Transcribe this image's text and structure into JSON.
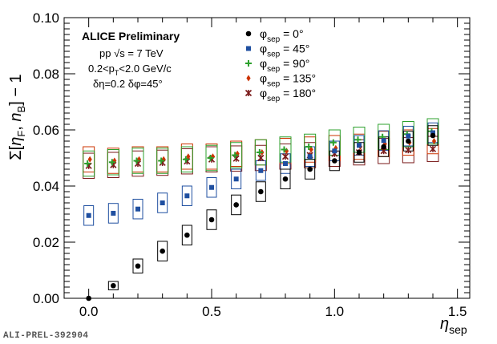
{
  "chart_data": {
    "type": "scatter",
    "title": "",
    "xlabel": "η_sep",
    "ylabel": "Σ[η_F, n_B] − 1",
    "xlim": [
      -0.1,
      1.55
    ],
    "ylim": [
      0.0,
      0.1
    ],
    "x_ticks": [
      "0.0",
      "0.5",
      "1.0",
      "1.5"
    ],
    "y_ticks": [
      "0.00",
      "0.02",
      "0.04",
      "0.06",
      "0.08",
      "0.10"
    ],
    "x": [
      0.0,
      0.1,
      0.2,
      0.3,
      0.4,
      0.5,
      0.6,
      0.7,
      0.8,
      0.9,
      1.0,
      1.1,
      1.2,
      1.3,
      1.4
    ],
    "series": [
      {
        "name": "φsep = 0°",
        "symbol": "circle",
        "color": "#000000",
        "values": [
          0.0,
          0.0045,
          0.0115,
          0.0168,
          0.0225,
          0.028,
          0.0333,
          0.038,
          0.0425,
          0.046,
          0.049,
          0.052,
          0.054,
          0.056,
          0.058
        ],
        "sys": [
          0.0,
          0.0015,
          0.0025,
          0.0035,
          0.0035,
          0.0035,
          0.0035,
          0.0035,
          0.0035,
          0.0035,
          0.0035,
          0.0035,
          0.0035,
          0.0035,
          0.0035
        ]
      },
      {
        "name": "φsep = 45°",
        "symbol": "square",
        "color": "#1f4fa0",
        "values": [
          0.0295,
          0.0303,
          0.0318,
          0.034,
          0.0365,
          0.0395,
          0.0425,
          0.0455,
          0.048,
          0.0505,
          0.0525,
          0.0545,
          0.0562,
          0.0578,
          0.059
        ],
        "sys": [
          0.0035,
          0.0035,
          0.0035,
          0.0035,
          0.0035,
          0.0035,
          0.0035,
          0.0035,
          0.0035,
          0.0035,
          0.0035,
          0.0035,
          0.0035,
          0.0035,
          0.0035
        ]
      },
      {
        "name": "φsep = 90°",
        "symbol": "cross",
        "color": "#2ca02c",
        "values": [
          0.048,
          0.0485,
          0.049,
          0.049,
          0.0495,
          0.05,
          0.051,
          0.052,
          0.053,
          0.054,
          0.0555,
          0.0565,
          0.0575,
          0.0585,
          0.0595
        ],
        "sys": [
          0.0045,
          0.0045,
          0.0045,
          0.0045,
          0.0045,
          0.0045,
          0.0045,
          0.0045,
          0.0045,
          0.0045,
          0.0045,
          0.0045,
          0.0045,
          0.0045,
          0.0045
        ]
      },
      {
        "name": "φsep = 135°",
        "symbol": "diamond",
        "color": "#cc3300",
        "values": [
          0.0495,
          0.049,
          0.0495,
          0.0495,
          0.0505,
          0.0505,
          0.0515,
          0.052,
          0.0525,
          0.053,
          0.0535,
          0.054,
          0.055,
          0.0555,
          0.056
        ],
        "sys": [
          0.0045,
          0.0045,
          0.0045,
          0.0045,
          0.0045,
          0.0045,
          0.0045,
          0.0045,
          0.0045,
          0.0045,
          0.0045,
          0.0045,
          0.0045,
          0.0045,
          0.0045
        ]
      },
      {
        "name": "φsep = 180°",
        "symbol": "star",
        "color": "#7a1a1a",
        "values": [
          0.0472,
          0.0475,
          0.048,
          0.0483,
          0.0488,
          0.0495,
          0.0498,
          0.05,
          0.0505,
          0.051,
          0.0515,
          0.052,
          0.0525,
          0.0528,
          0.0532
        ],
        "sys": [
          0.0045,
          0.0045,
          0.0045,
          0.0045,
          0.0045,
          0.0045,
          0.0045,
          0.0045,
          0.0045,
          0.0045,
          0.0045,
          0.0045,
          0.0045,
          0.0045,
          0.0045
        ]
      }
    ],
    "legend": {
      "position": "top-right",
      "entries": [
        {
          "base": "φ",
          "sub": "sep",
          "rest": " = 0°"
        },
        {
          "base": "φ",
          "sub": "sep",
          "rest": " = 45°"
        },
        {
          "base": "φ",
          "sub": "sep",
          "rest": " = 90°"
        },
        {
          "base": "φ",
          "sub": "sep",
          "rest": " = 135°"
        },
        {
          "base": "φ",
          "sub": "sep",
          "rest": " = 180°"
        }
      ]
    },
    "annotations": {
      "experiment": "ALICE Preliminary",
      "system": "pp √s = 7 TeV",
      "pt_range": "0.2<p",
      "pt_sub": "T",
      "pt_rest": "<2.0 GeV/c",
      "bins": "δη=0.2 δφ=45°"
    }
  },
  "figure_id": "ALI-PREL-392904"
}
